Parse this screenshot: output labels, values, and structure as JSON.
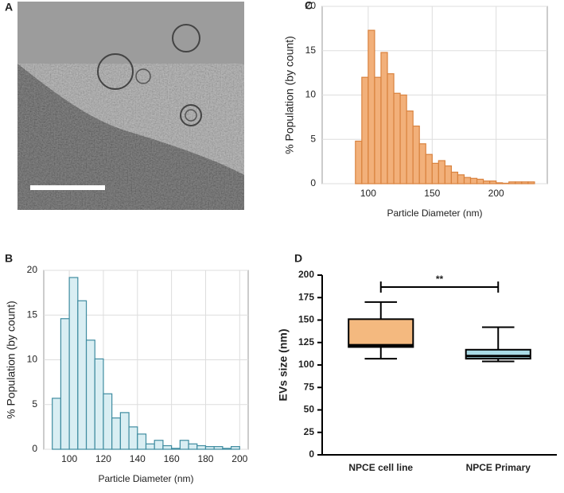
{
  "chart_data": [
    {
      "type": "image",
      "label": "A"
    },
    {
      "type": "histogram",
      "label": "B",
      "color": "#d9eef3",
      "edge": "#3f8ca0",
      "xlabel": "Particle Diameter (nm)",
      "ylabel": "% Population (by count)",
      "bins": [
        90,
        95,
        100,
        105,
        110,
        115,
        120,
        125,
        130,
        135,
        140,
        145,
        150,
        155,
        160,
        165,
        170,
        175,
        180,
        185,
        190,
        195,
        200
      ],
      "counts": [
        5.7,
        14.6,
        19.2,
        16.6,
        12.2,
        10.1,
        6.2,
        3.5,
        4.1,
        2.5,
        1.7,
        0.6,
        1.0,
        0.4,
        0.1,
        1.0,
        0.6,
        0.4,
        0.3,
        0.3,
        0.1,
        0.3
      ],
      "xlim": [
        85,
        205
      ],
      "ylim": [
        0,
        20
      ],
      "xticks": [
        100,
        120,
        140,
        160,
        180,
        200
      ],
      "yticks": [
        0,
        5,
        10,
        15,
        20
      ]
    },
    {
      "type": "histogram",
      "label": "C",
      "color": "#f2b07a",
      "edge": "#d9823e",
      "xlabel": "Particle Diameter (nm)",
      "ylabel": "% Population (by count)",
      "bins": [
        90,
        95,
        100,
        105,
        110,
        115,
        120,
        125,
        130,
        135,
        140,
        145,
        150,
        155,
        160,
        165,
        170,
        175,
        180,
        185,
        190,
        195,
        200,
        205,
        210,
        215,
        220,
        225,
        230
      ],
      "counts": [
        4.8,
        12.0,
        17.3,
        12.0,
        14.8,
        12.4,
        10.2,
        10.0,
        8.2,
        6.5,
        4.5,
        3.3,
        2.3,
        2.6,
        2.0,
        1.3,
        1.0,
        0.7,
        0.6,
        0.5,
        0.3,
        0.3,
        0.1,
        0.05,
        0.2,
        0.2,
        0.2,
        0.2
      ],
      "xlim": [
        64,
        240
      ],
      "ylim": [
        0,
        20
      ],
      "xticks": [
        100,
        150,
        200
      ],
      "yticks": [
        0,
        5,
        10,
        15,
        20
      ]
    },
    {
      "type": "box",
      "label": "D",
      "ylabel": "EVs size (nm)",
      "categories": [
        "NPCE cell line",
        "NPCE Primary"
      ],
      "boxes": [
        {
          "min": 107,
          "q1": 120,
          "median": 122,
          "q3": 151,
          "max": 170,
          "color": "#f4b97f"
        },
        {
          "min": 104,
          "q1": 107,
          "median": 110,
          "q3": 117,
          "max": 142,
          "color": "#a9dbe6"
        }
      ],
      "annotation": "**",
      "ylim": [
        0,
        200
      ],
      "yticks": [
        0,
        25,
        50,
        75,
        100,
        125,
        150,
        175,
        200
      ]
    }
  ]
}
